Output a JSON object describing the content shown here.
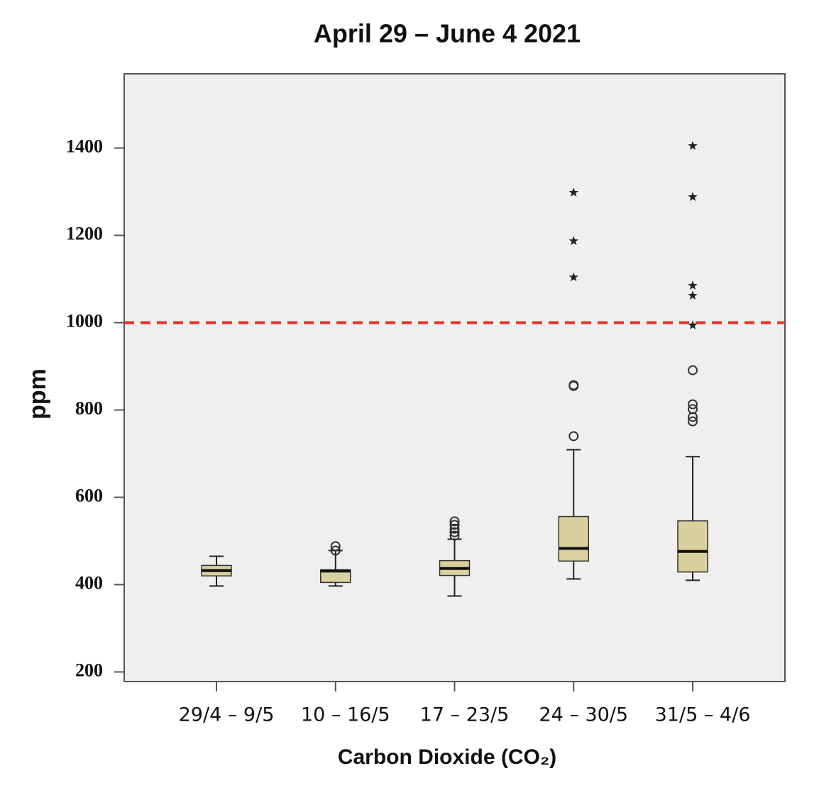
{
  "chart_data": {
    "type": "box",
    "title": "April 29 – June 4 2021",
    "y_label": "ppm",
    "x_label": "Carbon Dioxide (CO₂)",
    "categories": [
      "29/4 – 9/5",
      "10 – 16/5",
      "17 – 23/5",
      "24 – 30/5",
      "31/5 – 4/6"
    ],
    "boxes": [
      {
        "whislo": 397,
        "q1": 420,
        "med": 432,
        "q3": 444,
        "whishi": 465,
        "outliers": [],
        "extremes": []
      },
      {
        "whislo": 397,
        "q1": 405,
        "med": 431,
        "q3": 434,
        "whishi": 478,
        "outliers": [
          478,
          488
        ],
        "extremes": []
      },
      {
        "whislo": 374,
        "q1": 421,
        "med": 437,
        "q3": 455,
        "whishi": 504,
        "outliers": [
          512,
          520,
          528,
          537,
          545
        ],
        "extremes": []
      },
      {
        "whislo": 413,
        "q1": 454,
        "med": 483,
        "q3": 556,
        "whishi": 709,
        "outliers": [
          740,
          855,
          857
        ],
        "extremes": [
          1104,
          1187,
          1298
        ]
      },
      {
        "whislo": 410,
        "q1": 429,
        "med": 476,
        "q3": 546,
        "whishi": 693,
        "outliers": [
          774,
          784,
          802,
          813,
          891
        ],
        "extremes": [
          994,
          1062,
          1085,
          1288,
          1405
        ]
      }
    ],
    "box_color": "#d9d09d",
    "reference_line": 1000,
    "reference_color": "#e8302a",
    "background": "#efefef",
    "ylim": [
      178,
      1570
    ],
    "yticks": [
      200,
      400,
      600,
      800,
      1000,
      1200,
      1400
    ]
  }
}
